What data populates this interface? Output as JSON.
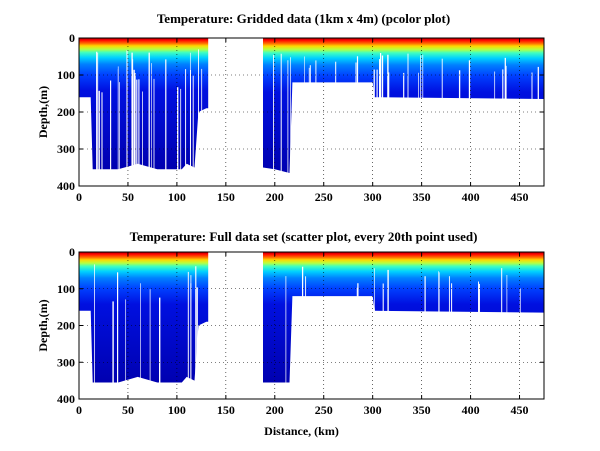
{
  "chart_data": [
    {
      "type": "heatmap",
      "title": "Temperature: Gridded data (1km x 4m) (pcolor plot)",
      "xlabel": "",
      "ylabel": "Depth,(m)",
      "xlim": [
        0,
        475
      ],
      "ylim": [
        400,
        0
      ],
      "y_reversed": true,
      "grid": true,
      "colormap": "jet",
      "xticks": [
        "0",
        "50",
        "100",
        "150",
        "200",
        "250",
        "300",
        "350",
        "400",
        "450"
      ],
      "yticks": [
        "0",
        "100",
        "200",
        "300",
        "400"
      ],
      "max_depth_profile": [
        {
          "x": 0,
          "depth": 160
        },
        {
          "x": 12,
          "depth": 160
        },
        {
          "x": 14,
          "depth": 355
        },
        {
          "x": 40,
          "depth": 355
        },
        {
          "x": 60,
          "depth": 340
        },
        {
          "x": 80,
          "depth": 355
        },
        {
          "x": 105,
          "depth": 355
        },
        {
          "x": 110,
          "depth": 340
        },
        {
          "x": 118,
          "depth": 350
        },
        {
          "x": 122,
          "depth": 200
        },
        {
          "x": 130,
          "depth": 190
        },
        {
          "x": 188,
          "depth": 350
        },
        {
          "x": 200,
          "depth": 355
        },
        {
          "x": 215,
          "depth": 365
        },
        {
          "x": 218,
          "depth": 120
        },
        {
          "x": 300,
          "depth": 120
        },
        {
          "x": 302,
          "depth": 160
        },
        {
          "x": 475,
          "depth": 165
        }
      ],
      "no_data_x_range": [
        132,
        188
      ]
    },
    {
      "type": "scatter",
      "title": "Temperature: Full data set (scatter plot, every 20th point used)",
      "xlabel": "Distance, (km)",
      "ylabel": "Depth,(m)",
      "xlim": [
        0,
        475
      ],
      "ylim": [
        400,
        0
      ],
      "y_reversed": true,
      "grid": true,
      "colormap": "jet",
      "xticks": [
        "0",
        "50",
        "100",
        "150",
        "200",
        "250",
        "300",
        "350",
        "400",
        "450"
      ],
      "yticks": [
        "0",
        "100",
        "200",
        "300",
        "400"
      ],
      "max_depth_profile": [
        {
          "x": 0,
          "depth": 160
        },
        {
          "x": 12,
          "depth": 160
        },
        {
          "x": 14,
          "depth": 355
        },
        {
          "x": 40,
          "depth": 355
        },
        {
          "x": 60,
          "depth": 340
        },
        {
          "x": 80,
          "depth": 355
        },
        {
          "x": 105,
          "depth": 355
        },
        {
          "x": 110,
          "depth": 340
        },
        {
          "x": 118,
          "depth": 350
        },
        {
          "x": 122,
          "depth": 200
        },
        {
          "x": 130,
          "depth": 190
        },
        {
          "x": 188,
          "depth": 355
        },
        {
          "x": 200,
          "depth": 355
        },
        {
          "x": 215,
          "depth": 355
        },
        {
          "x": 218,
          "depth": 120
        },
        {
          "x": 300,
          "depth": 120
        },
        {
          "x": 302,
          "depth": 160
        },
        {
          "x": 475,
          "depth": 165
        }
      ],
      "no_data_x_range": [
        132,
        188
      ]
    }
  ]
}
